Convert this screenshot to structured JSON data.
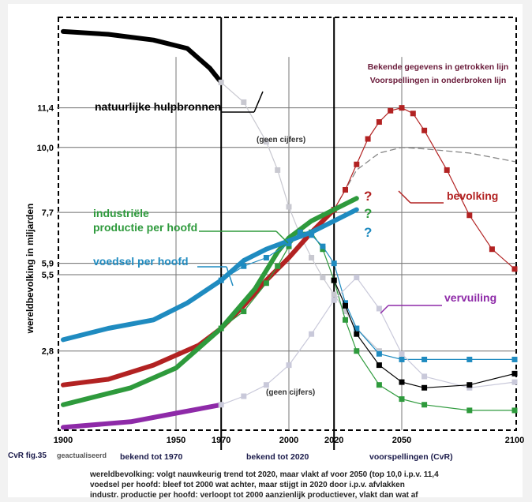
{
  "chart_data": {
    "type": "line",
    "ylabel": "wereldbevolking in miljarden",
    "xlim": [
      1900,
      2100
    ],
    "ylim": [
      0,
      14.6
    ],
    "x_ticks": [
      "1900",
      "1950",
      "1970",
      "2000",
      "2020",
      "2050",
      "2100"
    ],
    "x_tick_values": [
      1900,
      1950,
      1970,
      2000,
      2020,
      2050,
      2100
    ],
    "y_ticks": [
      "2,8",
      "5,5",
      "5,9",
      "7,7",
      "10,0",
      "11,4"
    ],
    "y_tick_values": [
      2.8,
      5.5,
      5.9,
      7.7,
      10.0,
      11.4
    ],
    "legend_note": [
      "Bekende gegevens in getrokken lijn",
      "Voorspellingen in onderbroken lijn"
    ],
    "bottom_labels": {
      "fig": "CvR fig.35",
      "updated": "geactualiseerd",
      "known_1970": "bekend tot 1970",
      "known_2020": "bekend tot 2020",
      "forecast": "voorspellingen (CvR)"
    },
    "no_figures_label": "(geen cijfers)",
    "question_mark": "?",
    "footnotes": [
      "wereldbevolking: volgt nauwkeurig trend tot 2020, maar vlakt af voor 2050 (top 10,0 i.p.v. 11,4",
      "voedsel per hoofd: bleef tot 2000 wat achter, maar stijgt in 2020 door i.p.v. afvlakken",
      "industr. productie per hoofd: verloopt tot 2000 aanzienlijk productiever, vlakt dan wat af"
    ],
    "series": [
      {
        "name": "natuurlijke hulpbronnen",
        "color": "#000000",
        "label_color": "#000000",
        "known": {
          "x": [
            1900,
            1920,
            1940,
            1955,
            1965,
            1970
          ],
          "y": [
            14.1,
            14.0,
            13.8,
            13.5,
            12.8,
            12.3
          ]
        },
        "forecast": {
          "x": [
            1970,
            1980,
            1990,
            1995,
            2000,
            2005,
            2010,
            2015,
            2020,
            2025,
            2030,
            2040
          ],
          "y": [
            12.3,
            11.6,
            10.2,
            9.2,
            7.9,
            6.9,
            6.1,
            5.4,
            4.8,
            4.2,
            3.6,
            2.8
          ]
        }
      },
      {
        "name": "bevolking",
        "color": "#b22222",
        "label_color": "#b22222",
        "known": {
          "x": [
            1900,
            1920,
            1940,
            1960,
            1970,
            1980,
            1990,
            2000,
            2010,
            2020
          ],
          "y": [
            1.6,
            1.8,
            2.3,
            3.0,
            3.6,
            4.4,
            5.3,
            6.1,
            7.0,
            7.8
          ]
        },
        "forecast": {
          "x": [
            2020,
            2025,
            2030,
            2035,
            2040,
            2045,
            2050,
            2055,
            2060,
            2070,
            2080,
            2090,
            2100
          ],
          "y": [
            7.8,
            8.5,
            9.4,
            10.3,
            10.9,
            11.3,
            11.4,
            11.2,
            10.6,
            9.2,
            7.6,
            6.4,
            5.7
          ]
        },
        "alt_forecast": {
          "x": [
            2020,
            2030,
            2040,
            2050,
            2060,
            2080,
            2100
          ],
          "y": [
            7.8,
            9.2,
            9.8,
            10.0,
            9.95,
            9.8,
            9.5
          ]
        }
      },
      {
        "name": "industriële productie per hoofd",
        "color": "#2e9a3c",
        "label_color": "#2e9a3c",
        "known": {
          "x": [
            1900,
            1930,
            1950,
            1970,
            1985,
            1995,
            2000,
            2010,
            2020,
            2030
          ],
          "y": [
            0.9,
            1.5,
            2.2,
            3.6,
            5.0,
            6.3,
            6.8,
            7.4,
            7.8,
            8.2
          ]
        },
        "forecast": {
          "x": [
            1970,
            1980,
            1990,
            1995,
            2000,
            2005,
            2010,
            2015,
            2020,
            2025,
            2030,
            2040,
            2050,
            2060,
            2080,
            2100
          ],
          "y": [
            3.6,
            4.2,
            5.2,
            5.8,
            6.5,
            7.0,
            7.0,
            6.4,
            5.3,
            3.9,
            2.8,
            1.6,
            1.1,
            0.9,
            0.7,
            0.7
          ]
        }
      },
      {
        "name": "voedsel per hoofd",
        "color": "#1f8bc0",
        "label_color": "#1f8bc0",
        "known": {
          "x": [
            1900,
            1920,
            1940,
            1955,
            1970,
            1980,
            1990,
            2000,
            2010,
            2020,
            2030
          ],
          "y": [
            3.2,
            3.6,
            3.9,
            4.5,
            5.3,
            6.0,
            6.4,
            6.7,
            7.0,
            7.4,
            7.8
          ]
        },
        "forecast": {
          "x": [
            1970,
            1980,
            1990,
            2000,
            2005,
            2010,
            2015,
            2020,
            2025,
            2030,
            2040,
            2050,
            2060,
            2080,
            2100
          ],
          "y": [
            5.3,
            5.8,
            6.1,
            6.6,
            7.0,
            6.9,
            6.5,
            5.9,
            4.5,
            3.6,
            2.7,
            2.5,
            2.5,
            2.5,
            2.5
          ]
        }
      },
      {
        "name": "vervuiling",
        "color": "#8e2aa8",
        "label_color": "#8e2aa8",
        "known": {
          "x": [
            1900,
            1930,
            1950,
            1970
          ],
          "y": [
            0.1,
            0.3,
            0.6,
            0.9
          ]
        },
        "forecast": {
          "x": [
            1970,
            1980,
            1990,
            2000,
            2010,
            2020,
            2030,
            2040,
            2050,
            2060,
            2080,
            2100
          ],
          "y": [
            0.9,
            1.2,
            1.6,
            2.3,
            3.4,
            4.6,
            5.4,
            4.3,
            2.7,
            1.9,
            1.5,
            1.7
          ]
        }
      }
    ],
    "industry_alt_forecast": {
      "x": [
        2020,
        2025,
        2030,
        2040,
        2050,
        2060,
        2080,
        2100
      ],
      "y": [
        5.3,
        4.4,
        3.4,
        2.3,
        1.7,
        1.5,
        1.6,
        2.0
      ]
    }
  }
}
